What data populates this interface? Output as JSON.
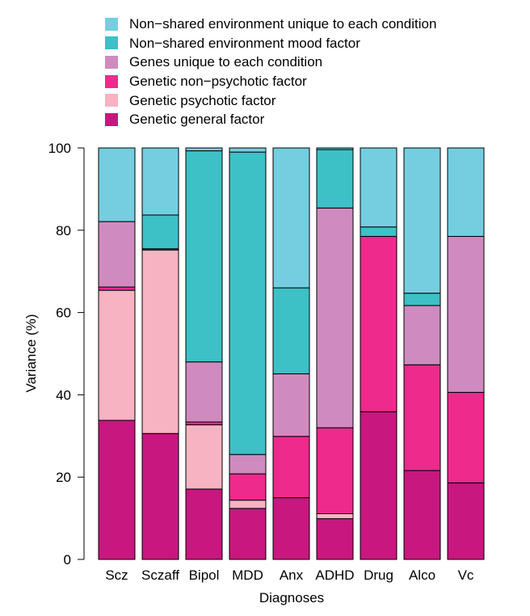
{
  "chart_data": {
    "type": "bar",
    "stacked": true,
    "xlabel": "Diagnoses",
    "ylabel": "Variance (%)",
    "ylim": [
      0,
      100
    ],
    "yticks": [
      0,
      20,
      40,
      60,
      80,
      100
    ],
    "categories": [
      "Scz",
      "Sczaff",
      "Bipol",
      "MDD",
      "Anx",
      "ADHD",
      "Drug",
      "Alco",
      "Vc"
    ],
    "legend_position": "top",
    "series": [
      {
        "name": "Genetic general factor",
        "color": "#c8177f",
        "values": [
          33.8,
          30.6,
          17.1,
          12.4,
          15.0,
          9.9,
          35.9,
          21.6,
          18.6
        ]
      },
      {
        "name": "Genetic psychotic factor",
        "color": "#f7b3c2",
        "values": [
          31.6,
          44.6,
          15.6,
          2.0,
          0,
          1.2,
          0,
          0,
          0
        ]
      },
      {
        "name": "Genetic non−psychotic factor",
        "color": "#ee2a8d",
        "values": [
          0.8,
          0.3,
          0.7,
          6.4,
          14.9,
          20.9,
          42.6,
          25.7,
          22.0
        ]
      },
      {
        "name": "Genes unique to each condition",
        "color": "#cf8bbf",
        "values": [
          15.9,
          0,
          14.6,
          4.7,
          15.2,
          53.4,
          0,
          14.4,
          37.9
        ]
      },
      {
        "name": "Non−shared environment mood factor",
        "color": "#3dc0c6",
        "values": [
          0,
          8.2,
          51.3,
          73.5,
          20.9,
          14.2,
          2.3,
          3.0,
          0
        ]
      },
      {
        "name": "Non−shared environment unique to each condition",
        "color": "#74cee0",
        "values": [
          17.9,
          16.3,
          0.7,
          1.0,
          34.0,
          0.4,
          19.2,
          35.3,
          21.5
        ]
      }
    ]
  },
  "legend": {
    "entries": [
      {
        "label": "Non−shared environment unique to each condition",
        "color": "#74cee0"
      },
      {
        "label": "Non−shared environment mood factor",
        "color": "#3dc0c6"
      },
      {
        "label": "Genes unique to each condition",
        "color": "#cf8bbf"
      },
      {
        "label": "Genetic non−psychotic factor",
        "color": "#ee2a8d"
      },
      {
        "label": "Genetic psychotic factor",
        "color": "#f7b3c2"
      },
      {
        "label": "Genetic general factor",
        "color": "#c8177f"
      }
    ]
  }
}
